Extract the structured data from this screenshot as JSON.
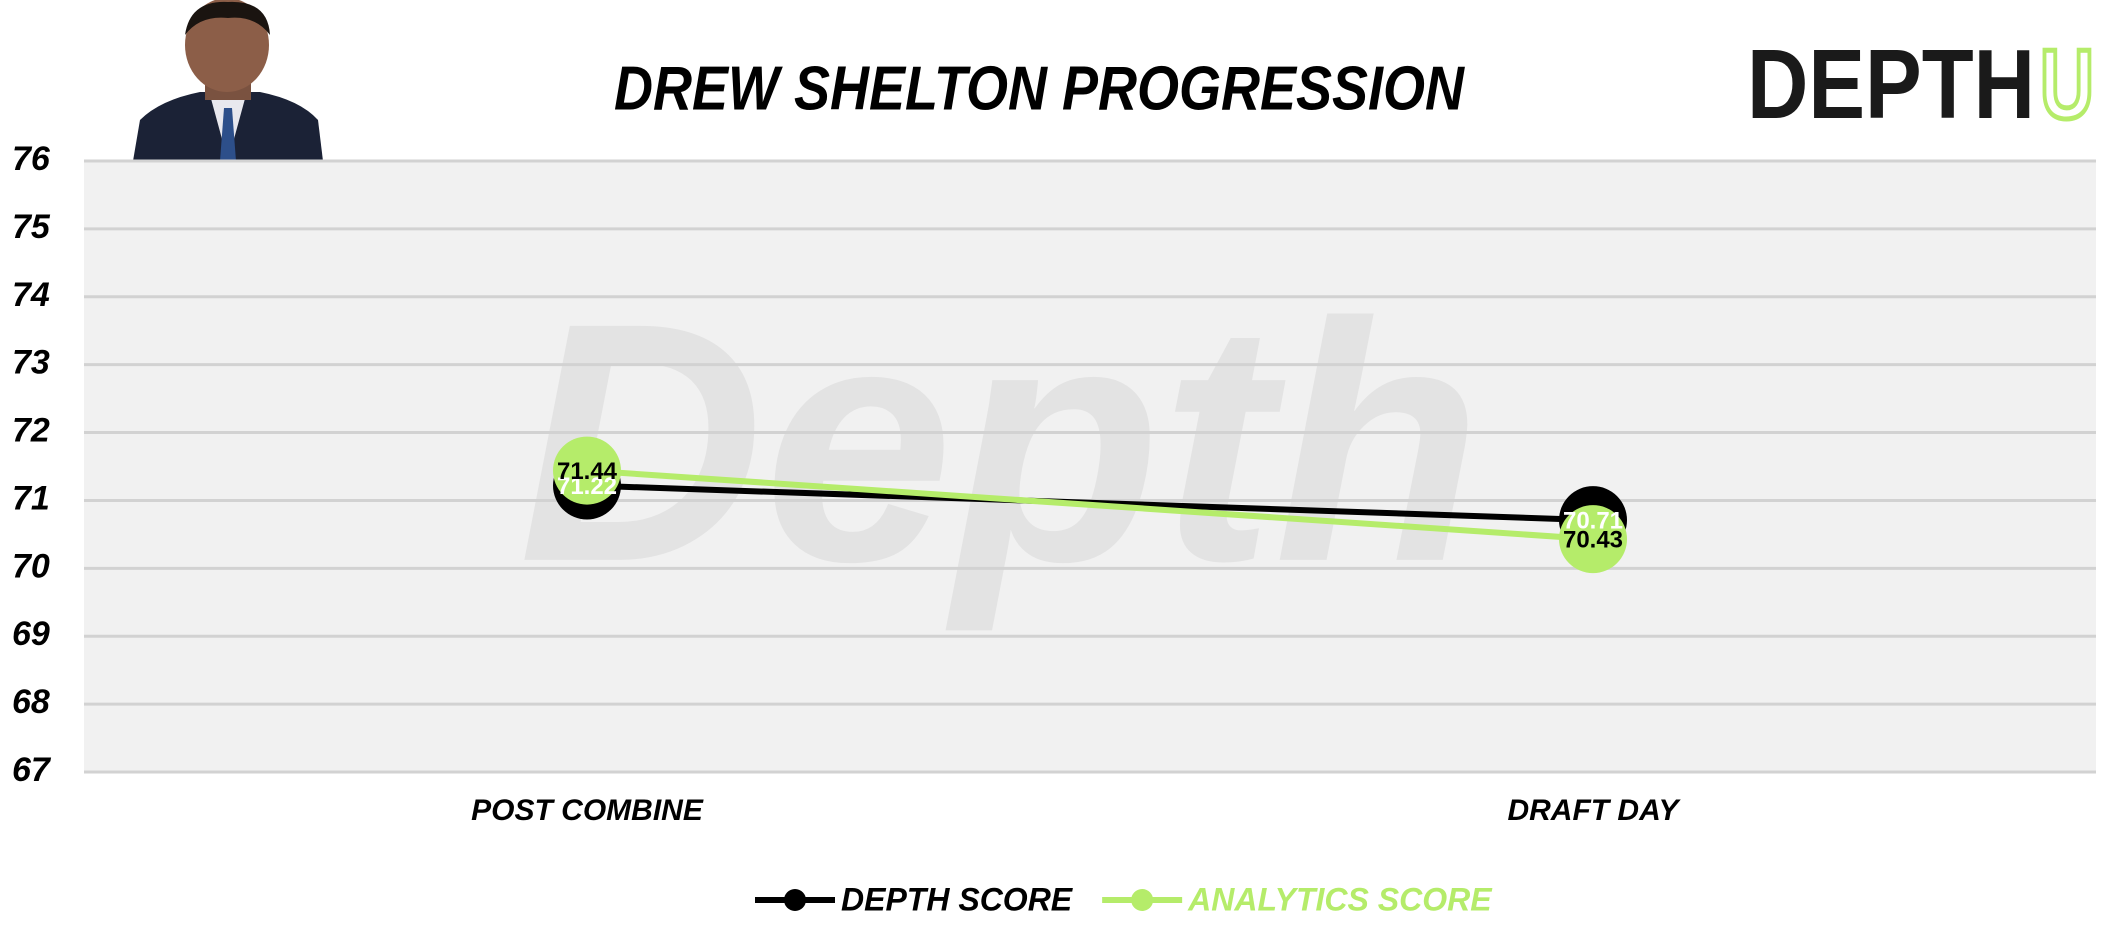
{
  "chart_data": {
    "type": "line",
    "title": "DREW SHELTON PROGRESSION",
    "logo": {
      "main": "DEPTH",
      "accent": "U"
    },
    "watermark": "Depth",
    "categories": [
      "POST COMBINE",
      "DRAFT DAY"
    ],
    "series": [
      {
        "name": "DEPTH SCORE",
        "color": "#000000",
        "label_color": "#ffffff",
        "values": [
          71.22,
          70.71
        ]
      },
      {
        "name": "ANALYTICS SCORE",
        "color": "#b5ec6a",
        "label_color": "#000000",
        "values": [
          71.44,
          70.43
        ]
      }
    ],
    "ylim": [
      67,
      76
    ],
    "yticks": [
      67,
      68,
      69,
      70,
      71,
      72,
      73,
      74,
      75,
      76
    ],
    "grid": true,
    "legend": "bottom"
  }
}
